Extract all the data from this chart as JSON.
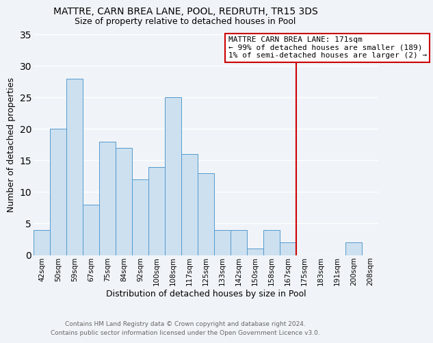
{
  "title": "MATTRE, CARN BREA LANE, POOL, REDRUTH, TR15 3DS",
  "subtitle": "Size of property relative to detached houses in Pool",
  "xlabel": "Distribution of detached houses by size in Pool",
  "ylabel": "Number of detached properties",
  "bar_labels": [
    "42sqm",
    "50sqm",
    "59sqm",
    "67sqm",
    "75sqm",
    "84sqm",
    "92sqm",
    "100sqm",
    "108sqm",
    "117sqm",
    "125sqm",
    "133sqm",
    "142sqm",
    "150sqm",
    "158sqm",
    "167sqm",
    "175sqm",
    "183sqm",
    "191sqm",
    "200sqm",
    "208sqm"
  ],
  "bar_values": [
    4,
    20,
    28,
    8,
    18,
    17,
    12,
    14,
    25,
    16,
    13,
    4,
    4,
    1,
    4,
    2,
    0,
    0,
    0,
    2,
    0
  ],
  "bar_color": "#cce0f0",
  "bar_edge_color": "#5599cc",
  "ylim": [
    0,
    35
  ],
  "yticks": [
    0,
    5,
    10,
    15,
    20,
    25,
    30,
    35
  ],
  "vline_index": 16,
  "vline_color": "#cc0000",
  "annotation_title": "MATTRE CARN BREA LANE: 171sqm",
  "annotation_line1": "← 99% of detached houses are smaller (189)",
  "annotation_line2": "1% of semi-detached houses are larger (2) →",
  "annotation_box_color": "#cc0000",
  "footer1": "Contains HM Land Registry data © Crown copyright and database right 2024.",
  "footer2": "Contains public sector information licensed under the Open Government Licence v3.0.",
  "background_color": "#f0f4f8",
  "grid_color": "#dde8f0",
  "title_fontsize": 10,
  "subtitle_fontsize": 9,
  "xlabel_fontsize": 9,
  "ylabel_fontsize": 9,
  "tick_fontsize": 7.5,
  "footer_fontsize": 6.5,
  "annotation_fontsize": 8
}
